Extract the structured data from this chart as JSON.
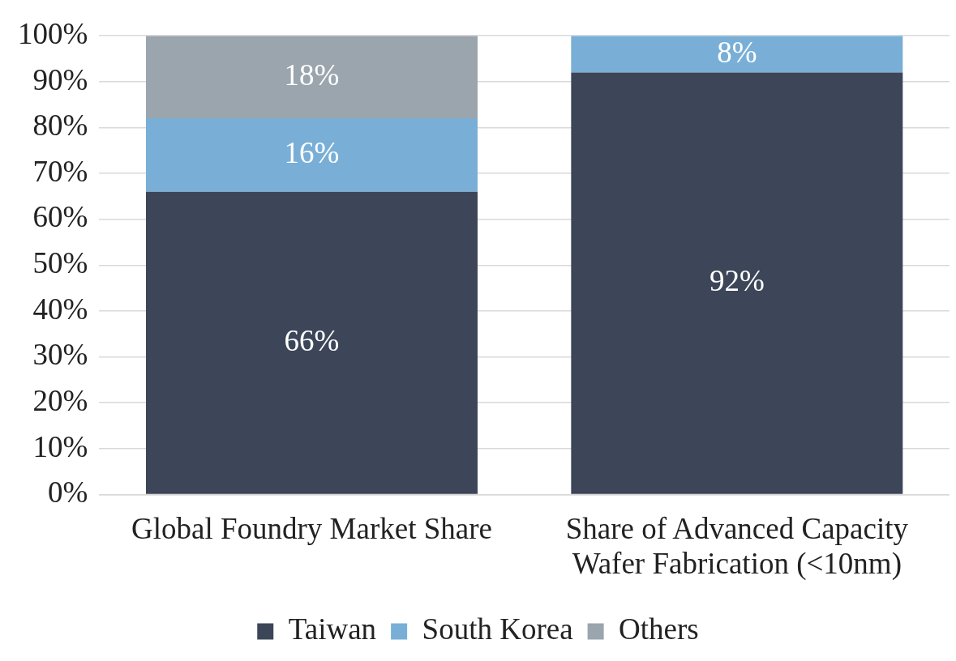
{
  "chart_data": {
    "type": "bar",
    "stacked": true,
    "categories": [
      "Global Foundry Market Share",
      "Share of Advanced Capacity Wafer Fabrication (<10nm)"
    ],
    "series": [
      {
        "name": "Taiwan",
        "color": "#3c4658",
        "values": [
          66,
          92
        ],
        "value_labels": [
          "66%",
          "92%"
        ]
      },
      {
        "name": "South Korea",
        "color": "#79afd6",
        "values": [
          16,
          8
        ],
        "value_labels": [
          "16%",
          "8%"
        ]
      },
      {
        "name": "Others",
        "color": "#9aa5ae",
        "values": [
          18,
          null
        ],
        "value_labels": [
          "18%",
          null
        ]
      }
    ],
    "ylim": [
      0,
      100
    ],
    "yticks": [
      {
        "value": 0,
        "label": "0%"
      },
      {
        "value": 10,
        "label": "10%"
      },
      {
        "value": 20,
        "label": "20%"
      },
      {
        "value": 30,
        "label": "30%"
      },
      {
        "value": 40,
        "label": "40%"
      },
      {
        "value": 50,
        "label": "50%"
      },
      {
        "value": 60,
        "label": "60%"
      },
      {
        "value": 70,
        "label": "70%"
      },
      {
        "value": 80,
        "label": "80%"
      },
      {
        "value": 90,
        "label": "90%"
      },
      {
        "value": 100,
        "label": "100%"
      }
    ],
    "grid": "y",
    "legend": "bottom"
  }
}
